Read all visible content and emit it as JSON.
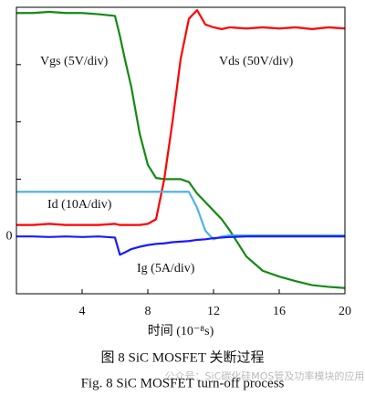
{
  "chart_data": {
    "type": "line",
    "x_label": "时间 (10⁻⁸s)",
    "caption_cn": "图 8   SiC MOSFET 关断过程",
    "caption_en": "Fig. 8   SiC MOSFET turn-off process",
    "watermark": "公众号：SiC碳化硅MOS管及功率模块的应用",
    "x": [
      0,
      1,
      2,
      3,
      4,
      5,
      6,
      6.3,
      6.6,
      7,
      7.5,
      8,
      8.5,
      9,
      9.5,
      10,
      10.5,
      11,
      11.5,
      12,
      12.5,
      13,
      14,
      15,
      16,
      17,
      18,
      19,
      20
    ],
    "xlim": [
      0,
      20
    ],
    "xticks": [
      4,
      8,
      12,
      16,
      20
    ],
    "ylim": [
      -1,
      4
    ],
    "yticks": [
      0
    ],
    "ytick_marks": [
      1,
      2,
      3
    ],
    "series": [
      {
        "name": "Vgs (5V/div)",
        "color": "#138a13",
        "values": [
          3.9,
          3.9,
          3.92,
          3.9,
          3.9,
          3.88,
          3.85,
          3.5,
          3.1,
          2.6,
          1.8,
          1.25,
          1.02,
          1.0,
          1.0,
          1.0,
          0.95,
          0.75,
          0.6,
          0.45,
          0.3,
          0.1,
          -0.35,
          -0.6,
          -0.7,
          -0.78,
          -0.85,
          -0.88,
          -0.9
        ]
      },
      {
        "name": "Vds (50V/div)",
        "color": "#ff0000",
        "values": [
          0.2,
          0.2,
          0.22,
          0.2,
          0.2,
          0.2,
          0.22,
          0.2,
          0.2,
          0.2,
          0.2,
          0.22,
          0.3,
          1.0,
          2.0,
          3.1,
          3.8,
          3.95,
          3.7,
          3.65,
          3.62,
          3.65,
          3.63,
          3.65,
          3.63,
          3.65,
          3.62,
          3.65,
          3.63
        ]
      },
      {
        "name": "Id (10A/div)",
        "color": "#4fb3e8",
        "values": [
          0.78,
          0.78,
          0.78,
          0.78,
          0.78,
          0.78,
          0.78,
          0.78,
          0.78,
          0.78,
          0.78,
          0.78,
          0.78,
          0.78,
          0.78,
          0.78,
          0.78,
          0.5,
          0.1,
          -0.05,
          0.0,
          0.02,
          0.02,
          0.02,
          0.02,
          0.02,
          0.02,
          0.02,
          0.02
        ]
      },
      {
        "name": "Ig (5A/div)",
        "color": "#1a1aff",
        "values": [
          0.0,
          0.0,
          -0.01,
          0.0,
          -0.01,
          0.0,
          -0.02,
          -0.32,
          -0.28,
          -0.22,
          -0.18,
          -0.15,
          -0.13,
          -0.12,
          -0.1,
          -0.09,
          -0.08,
          -0.06,
          -0.05,
          -0.03,
          -0.02,
          -0.01,
          0.0,
          0.0,
          0.0,
          0.0,
          0.0,
          0.0,
          0.0
        ]
      }
    ]
  }
}
